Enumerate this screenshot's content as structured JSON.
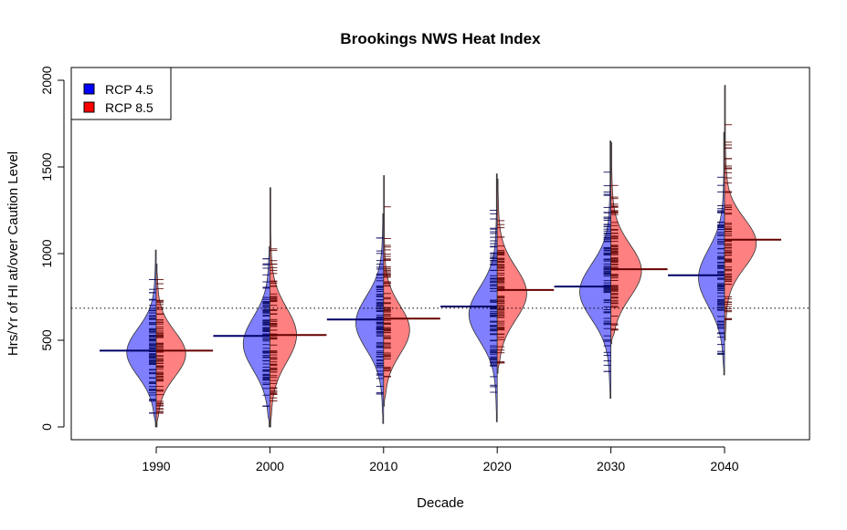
{
  "chart_data": {
    "type": "beanplot",
    "title": "Brookings NWS Heat Index",
    "xlabel": "Decade",
    "ylabel": "Hrs/Yr of HI at/over Caution Level",
    "categories": [
      "1990",
      "2000",
      "2010",
      "2020",
      "2030",
      "2040"
    ],
    "ylim": [
      0,
      2000
    ],
    "yticks": [
      0,
      500,
      1000,
      1500,
      2000
    ],
    "grid": false,
    "legend_position": "top-left",
    "reference_line": 685,
    "series": [
      {
        "name": "RCP 4.5",
        "color": "#0000ff",
        "fill": "#8080ff",
        "means": [
          440,
          525,
          620,
          695,
          810,
          875
        ],
        "ranges": [
          [
            0,
            1020
          ],
          [
            0,
            1040
          ],
          [
            20,
            1230
          ],
          [
            30,
            1460
          ],
          [
            165,
            1650
          ],
          [
            300,
            1700
          ]
        ],
        "peaks": [
          430,
          480,
          600,
          650,
          780,
          860
        ],
        "peak_widths": [
          0.52,
          0.47,
          0.49,
          0.5,
          0.55,
          0.46
        ],
        "spreads": [
          135,
          150,
          150,
          150,
          155,
          160
        ],
        "observation_range": [
          [
            80,
            850
          ],
          [
            120,
            970
          ],
          [
            190,
            1090
          ],
          [
            200,
            1250
          ],
          [
            320,
            1470
          ],
          [
            420,
            1650
          ]
        ]
      },
      {
        "name": "RCP 8.5",
        "color": "#ff0000",
        "fill": "#ff8080",
        "means": [
          440,
          530,
          625,
          790,
          910,
          1080
        ],
        "ranges": [
          [
            0,
            940
          ],
          [
            0,
            1380
          ],
          [
            120,
            1450
          ],
          [
            310,
            1430
          ],
          [
            480,
            1640
          ],
          [
            500,
            1970
          ]
        ],
        "peaks": [
          420,
          530,
          560,
          770,
          900,
          1060
        ],
        "peak_widths": [
          0.52,
          0.47,
          0.46,
          0.52,
          0.54,
          0.56
        ],
        "spreads": [
          130,
          155,
          140,
          150,
          150,
          140
        ],
        "observation_range": [
          [
            80,
            850
          ],
          [
            150,
            1200
          ],
          [
            290,
            1270
          ],
          [
            370,
            1190
          ],
          [
            560,
            1420
          ],
          [
            620,
            1800
          ]
        ]
      }
    ]
  }
}
